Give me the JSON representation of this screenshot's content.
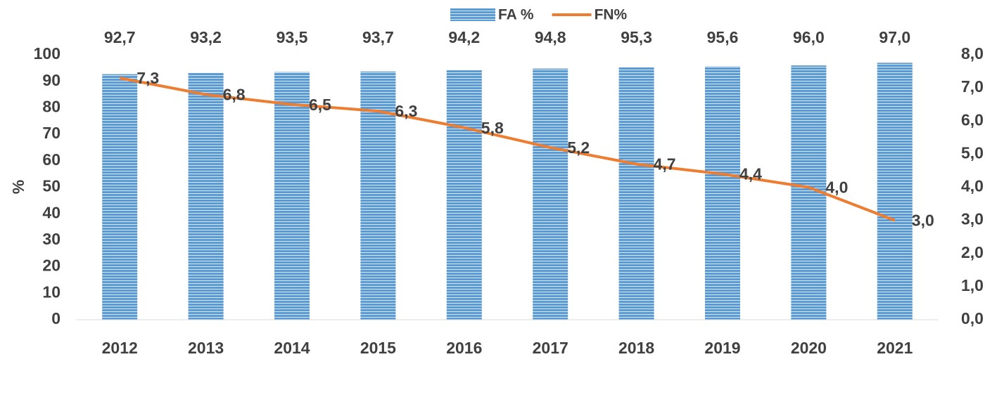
{
  "chart_data": {
    "type": "bar",
    "categories": [
      "2012",
      "2013",
      "2014",
      "2015",
      "2016",
      "2017",
      "2018",
      "2019",
      "2020",
      "2021"
    ],
    "series": [
      {
        "name": "FA %",
        "type": "bar",
        "color": "#5b9bd5",
        "values": [
          92.7,
          93.2,
          93.5,
          93.7,
          94.2,
          94.8,
          95.3,
          95.6,
          96.0,
          97.0
        ],
        "value_labels": [
          "92,7",
          "93,2",
          "93,5",
          "93,7",
          "94,2",
          "94,8",
          "95,3",
          "95,6",
          "96,0",
          "97,0"
        ]
      },
      {
        "name": "FN%",
        "type": "line",
        "axis": "y2",
        "color": "#ed7d31",
        "values": [
          7.3,
          6.8,
          6.5,
          6.3,
          5.8,
          5.2,
          4.7,
          4.4,
          4.0,
          3.0
        ],
        "value_labels": [
          "7,3",
          "6,8",
          "6,5",
          "6,3",
          "5,8",
          "5,2",
          "4,7",
          "4,4",
          "4,0",
          "3,0"
        ]
      }
    ],
    "ylabel": "%",
    "ylim": [
      0,
      100
    ],
    "yticks": [
      0,
      10,
      20,
      30,
      40,
      50,
      60,
      70,
      80,
      90,
      100
    ],
    "y2lim": [
      0,
      8
    ],
    "y2ticks": [
      {
        "value": 0,
        "label": "0,0"
      },
      {
        "value": 1,
        "label": "1,0"
      },
      {
        "value": 2,
        "label": "2,0"
      },
      {
        "value": 3,
        "label": "3,0"
      },
      {
        "value": 4,
        "label": "4,0"
      },
      {
        "value": 5,
        "label": "5,0"
      },
      {
        "value": 6,
        "label": "6,0"
      },
      {
        "value": 7,
        "label": "7,0"
      },
      {
        "value": 8,
        "label": "8,0"
      }
    ],
    "legend": "top",
    "grid": false
  }
}
